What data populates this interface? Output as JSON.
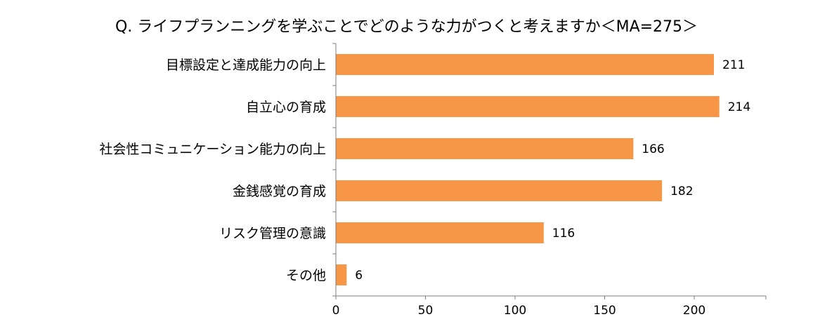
{
  "chart_data": {
    "type": "bar",
    "orientation": "horizontal",
    "title": "Q. ライフプランニングを学ぶことでどのような力がつくと考えますか＜MA=275＞",
    "categories": [
      "目標設定と達成能力の向上",
      "自立心の育成",
      "社会性コミュニケーション能力の向上",
      "金銭感覚の育成",
      "リスク管理の意識",
      "その他"
    ],
    "values": [
      211,
      214,
      166,
      182,
      116,
      6
    ],
    "data_labels": [
      "211",
      "214",
      "166",
      "182",
      "116",
      "6"
    ],
    "xlim": [
      0,
      240
    ],
    "x_ticks": [
      0,
      50,
      100,
      150,
      200
    ],
    "x_tick_labels": [
      "0",
      "50",
      "100",
      "150",
      "200"
    ],
    "bar_color": "#F79646",
    "grid": false,
    "legend": "none"
  }
}
